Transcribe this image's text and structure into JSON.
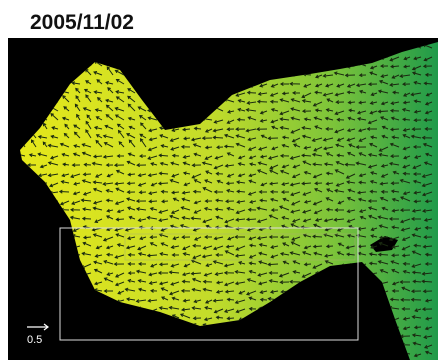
{
  "title": "2005/11/02",
  "scale_label": "0.5"
}
